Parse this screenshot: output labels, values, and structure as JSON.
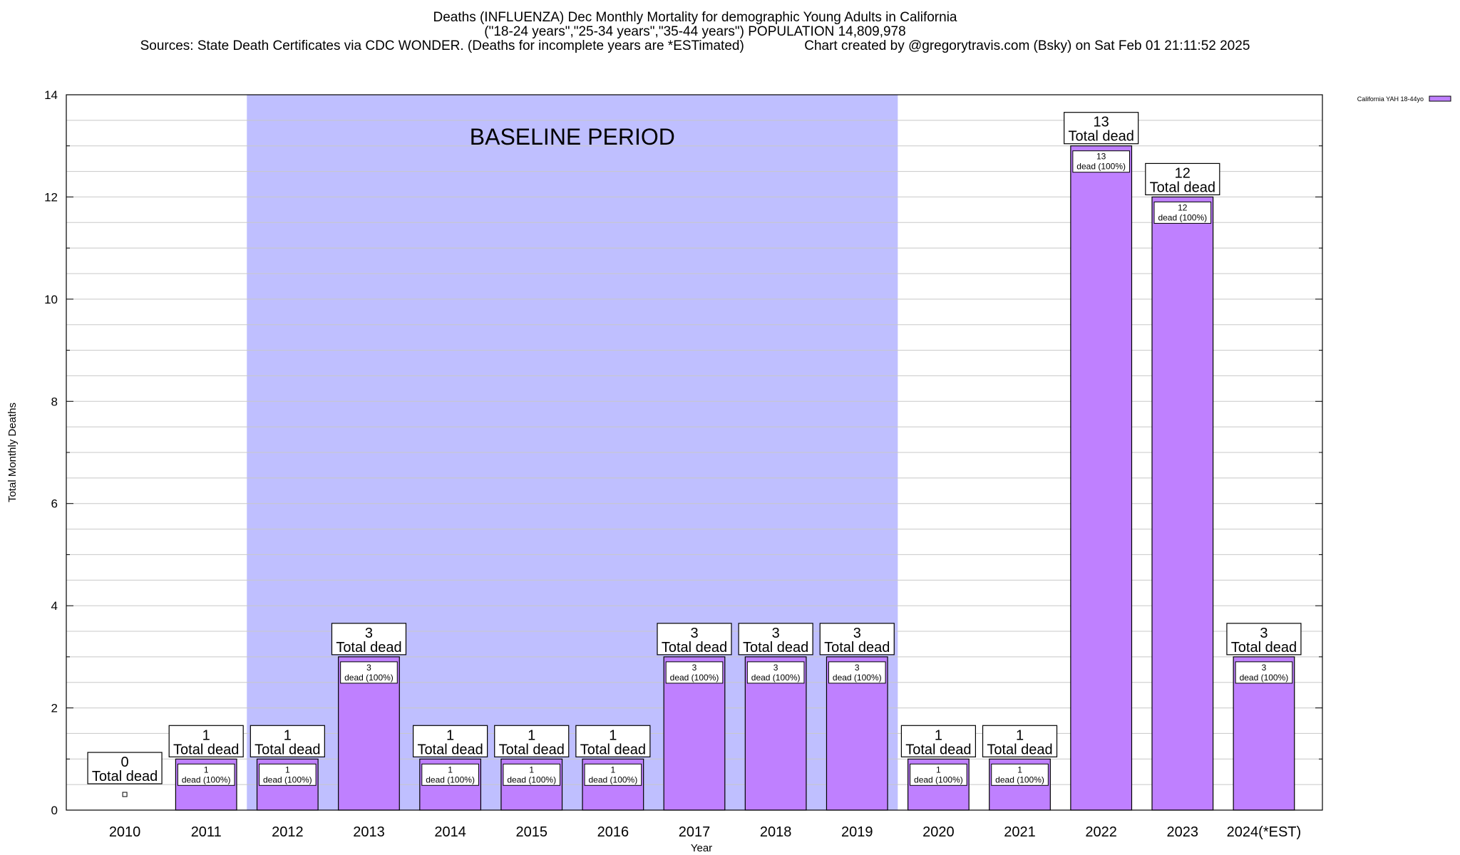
{
  "titles": {
    "line1": "Deaths (INFLUENZA) Dec Monthly Mortality for demographic Young Adults in California",
    "line2": "(\"18-24 years\",\"25-34 years\",\"35-44 years\") POPULATION 14,809,978",
    "line3": "Sources: State Death Certificates via CDC WONDER. (Deaths for incomplete years are *ESTimated)                Chart created by @gregorytravis.com (Bsky) on Sat Feb 01 21:11:52 2025"
  },
  "colors": {
    "bar_fill": "#bf80ff",
    "baseline_fill": "#bfbfff",
    "grid": "#c8c8c8",
    "axis": "#000000"
  },
  "chart_data": {
    "type": "bar",
    "xlabel": "Year",
    "ylabel": "Total Monthly Deaths",
    "ylim": [
      0,
      14
    ],
    "yticks": [
      0,
      2,
      4,
      6,
      8,
      10,
      12,
      14
    ],
    "grid": true,
    "legend": {
      "placement": "top-right",
      "label": "California YAH 18-44yo"
    },
    "baseline": {
      "label": "BASELINE PERIOD",
      "from": "2012",
      "to": "2019"
    },
    "categories": [
      "2010",
      "2011",
      "2012",
      "2013",
      "2014",
      "2015",
      "2016",
      "2017",
      "2018",
      "2019",
      "2020",
      "2021",
      "2022",
      "2023",
      "2024(*EST)"
    ],
    "series": [
      {
        "name": "California YAH 18-44yo",
        "values": [
          0,
          1,
          1,
          3,
          1,
          1,
          1,
          3,
          3,
          3,
          1,
          1,
          13,
          12,
          3
        ]
      }
    ],
    "total_label_suffix": "Total dead",
    "inner_label_suffix": "dead (100%)"
  }
}
